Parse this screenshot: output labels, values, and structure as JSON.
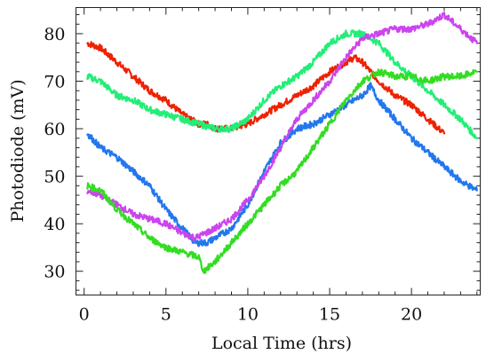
{
  "chart_data": {
    "type": "line",
    "title": "",
    "xlabel": "Local  Time (hrs)",
    "ylabel": "Photodiode (mV)",
    "xlim": [
      -0.5,
      24.2
    ],
    "ylim": [
      25,
      85.5
    ],
    "xticks": [
      0,
      5,
      10,
      15,
      20
    ],
    "yticks": [
      30,
      40,
      50,
      60,
      70,
      80
    ],
    "grid": false,
    "legend": "none",
    "series": [
      {
        "color": "#ee2200",
        "x": [
          0.2,
          1,
          2,
          3,
          4,
          5,
          6,
          7,
          7.5,
          8,
          9,
          10,
          11,
          12,
          13,
          14,
          15,
          16,
          16.5,
          17,
          18,
          19,
          20,
          21,
          22
        ],
        "y": [
          78,
          77,
          74,
          71,
          68,
          66,
          63,
          61,
          61,
          60,
          60,
          61,
          63,
          65,
          67,
          69,
          72,
          74,
          75,
          74,
          70,
          67,
          65,
          62,
          59
        ]
      },
      {
        "color": "#22ee77",
        "x": [
          0.2,
          1,
          2,
          3,
          4,
          5,
          6,
          7,
          8,
          9,
          10,
          11,
          12,
          13,
          14,
          15,
          16,
          17,
          18,
          19,
          20,
          21,
          22,
          23,
          24
        ],
        "y": [
          71,
          70,
          67,
          66,
          64,
          63,
          62,
          61,
          60,
          60,
          62,
          66,
          69,
          71,
          74,
          78,
          80,
          80,
          78,
          74,
          71,
          68,
          65,
          62,
          58
        ]
      },
      {
        "color": "#2277ee",
        "x": [
          0.2,
          1,
          2,
          3,
          4,
          5,
          6,
          6.8,
          7.5,
          8,
          9,
          10,
          11,
          12,
          13,
          14,
          15,
          16,
          17,
          17.5,
          18,
          19,
          20,
          21,
          22,
          23,
          24
        ],
        "y": [
          59,
          56,
          54,
          51,
          48,
          43,
          39,
          36,
          36,
          37,
          39,
          44,
          51,
          57,
          60,
          61,
          63,
          65,
          67,
          69,
          66,
          62,
          58,
          55,
          52,
          49,
          47
        ]
      },
      {
        "color": "#cc44ee",
        "x": [
          0.2,
          1,
          2,
          3,
          4,
          5,
          6,
          6.8,
          8,
          9,
          10,
          11,
          12,
          13,
          14,
          15,
          16,
          17,
          18,
          19,
          20,
          21,
          22,
          23,
          24
        ],
        "y": [
          47,
          46,
          44,
          42,
          41,
          40,
          38,
          37,
          39,
          41,
          45,
          50,
          56,
          62,
          66,
          70,
          75,
          79,
          80,
          81,
          81,
          82,
          84,
          81,
          78
        ]
      },
      {
        "color": "#33dd22",
        "x": [
          0.2,
          1,
          2,
          3,
          4,
          5,
          6,
          7,
          7.3,
          8,
          9,
          10,
          11,
          12,
          13,
          14,
          15,
          16,
          17,
          18,
          19,
          20,
          21,
          22,
          23,
          24
        ],
        "y": [
          48,
          47,
          43,
          40,
          37,
          35,
          34,
          33,
          30,
          32,
          36,
          40,
          44,
          48,
          51,
          56,
          61,
          66,
          70,
          72,
          71,
          71,
          70,
          71,
          71,
          72
        ]
      }
    ]
  }
}
